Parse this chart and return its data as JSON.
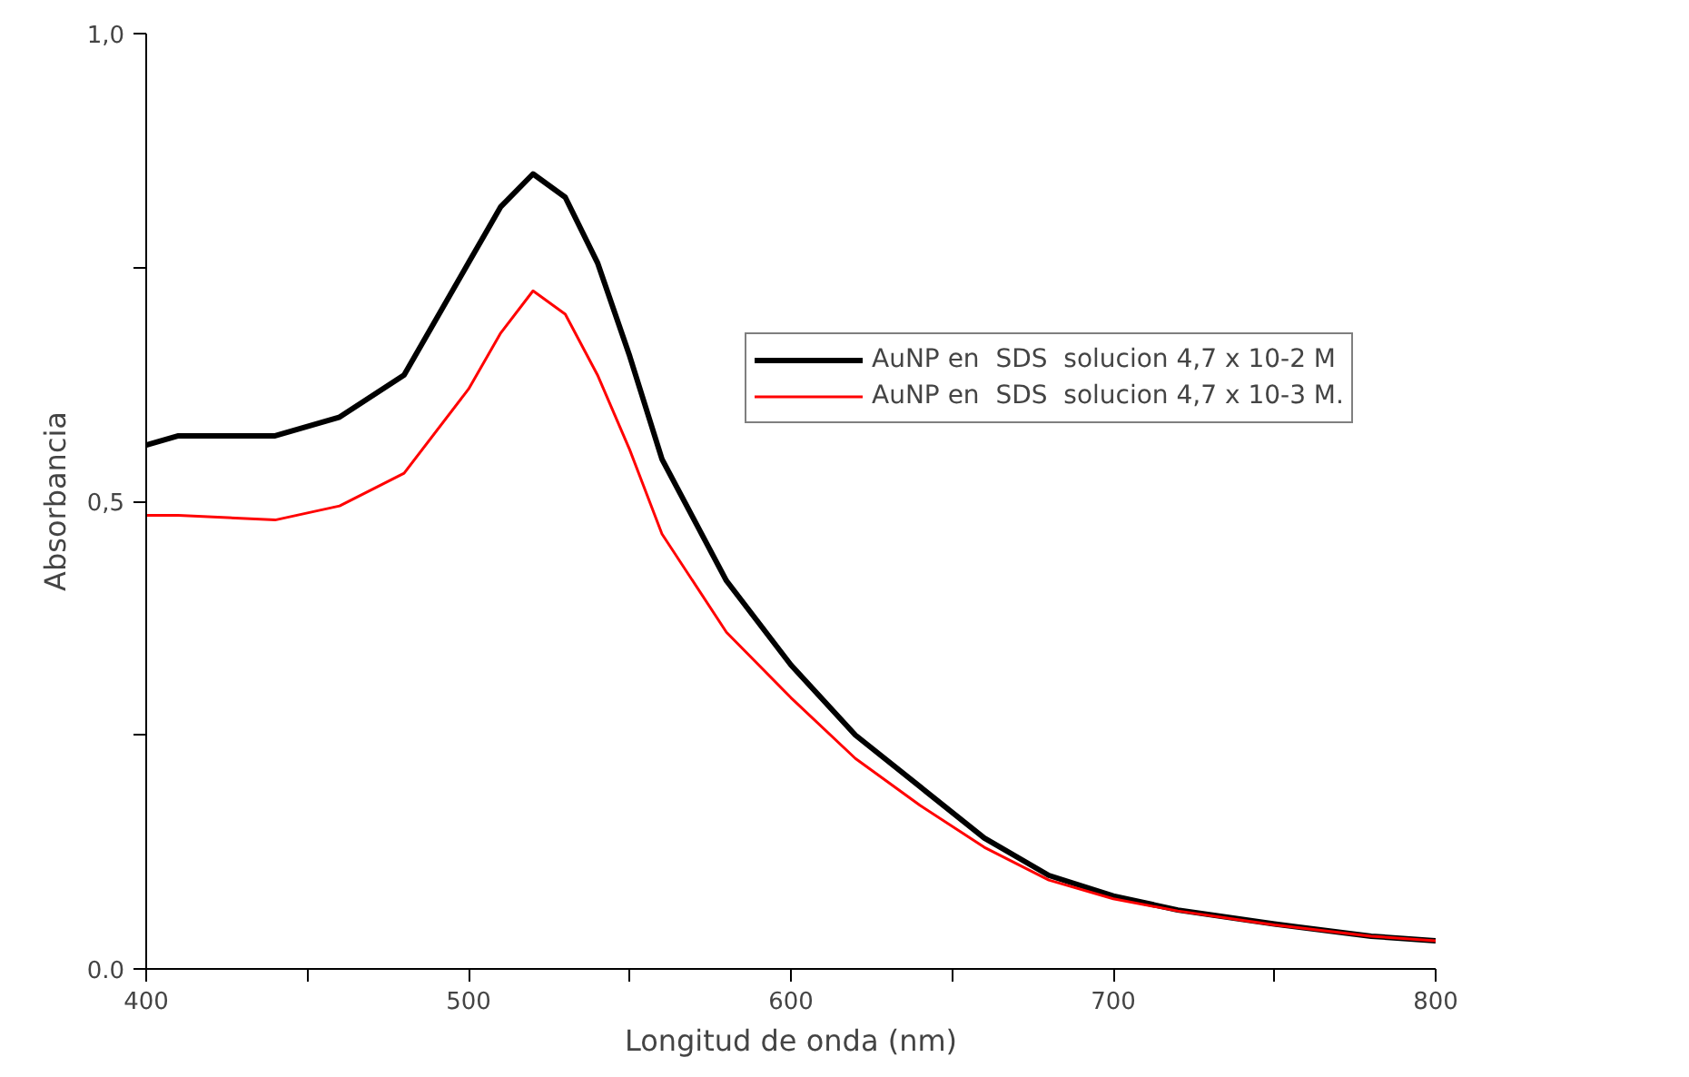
{
  "chart_data": {
    "type": "line",
    "xlabel": "Longitud de onda (nm)",
    "ylabel": "Absorbancia",
    "x": [
      400,
      410,
      440,
      460,
      480,
      500,
      510,
      520,
      530,
      540,
      550,
      560,
      580,
      600,
      620,
      640,
      660,
      680,
      700,
      720,
      750,
      780,
      800
    ],
    "series": [
      {
        "name": "AuNP en  SDS  solucion 4,7 x 10-2 M",
        "color": "#000000",
        "values": [
          0.56,
          0.57,
          0.57,
          0.59,
          0.635,
          0.755,
          0.815,
          0.85,
          0.825,
          0.755,
          0.655,
          0.545,
          0.415,
          0.325,
          0.25,
          0.195,
          0.14,
          0.1,
          0.078,
          0.063,
          0.048,
          0.035,
          0.03
        ]
      },
      {
        "name": "AuNP en  SDS  solucion 4,7 x 10-3 M.",
        "color": "#ff0000",
        "values": [
          0.485,
          0.485,
          0.48,
          0.495,
          0.53,
          0.62,
          0.68,
          0.725,
          0.7,
          0.635,
          0.555,
          0.465,
          0.36,
          0.29,
          0.225,
          0.175,
          0.13,
          0.095,
          0.075,
          0.062,
          0.047,
          0.035,
          0.03
        ]
      }
    ],
    "xlim": [
      400,
      800
    ],
    "ylim": [
      0,
      1
    ],
    "xticks": [
      400,
      {
        "value": 450,
        "label": null
      },
      500,
      {
        "value": 550,
        "label": null
      },
      600,
      {
        "value": 650,
        "label": null
      },
      700,
      {
        "value": 750,
        "label": null
      },
      800
    ],
    "yticks": [
      {
        "value": 0,
        "label": "0.0"
      },
      {
        "value": 0.25,
        "label": null
      },
      {
        "value": 0.5,
        "label": "0,5"
      },
      {
        "value": 0.75,
        "label": null
      },
      {
        "value": 1,
        "label": "1,0"
      }
    ],
    "grid": false,
    "legend": "top right",
    "line_style": "solid",
    "marker": "none"
  }
}
